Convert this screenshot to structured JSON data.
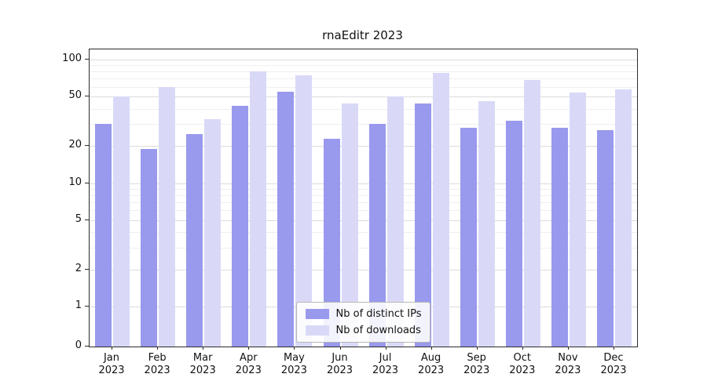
{
  "title": "rnaEditr 2023",
  "chart_data": {
    "type": "bar",
    "scale": "log",
    "title": "rnaEditr 2023",
    "year": "2023",
    "categories": [
      "Jan",
      "Feb",
      "Mar",
      "Apr",
      "May",
      "Jun",
      "Jul",
      "Aug",
      "Sep",
      "Oct",
      "Nov",
      "Dec"
    ],
    "series": [
      {
        "name": "Nb of distinct IPs",
        "color": "#9999ee",
        "values": [
          30,
          19,
          25,
          42,
          55,
          23,
          30,
          44,
          28,
          32,
          28,
          27
        ]
      },
      {
        "name": "Nb of downloads",
        "color": "#d9d9f7",
        "values": [
          50,
          60,
          33,
          80,
          75,
          44,
          50,
          78,
          46,
          68,
          54,
          57
        ]
      }
    ],
    "y_ticks": [
      0,
      1,
      2,
      5,
      10,
      20,
      50,
      100
    ],
    "y_minor_ticks": [
      3,
      4,
      6,
      7,
      8,
      9,
      30,
      40,
      60,
      70,
      80,
      90
    ],
    "ylim": [
      0,
      110
    ],
    "grid": true,
    "legend_position": "lower center",
    "grid_major_color": "#dcdcdc",
    "grid_minor_color": "#efefef",
    "axis_color": "#2b2b2b"
  }
}
